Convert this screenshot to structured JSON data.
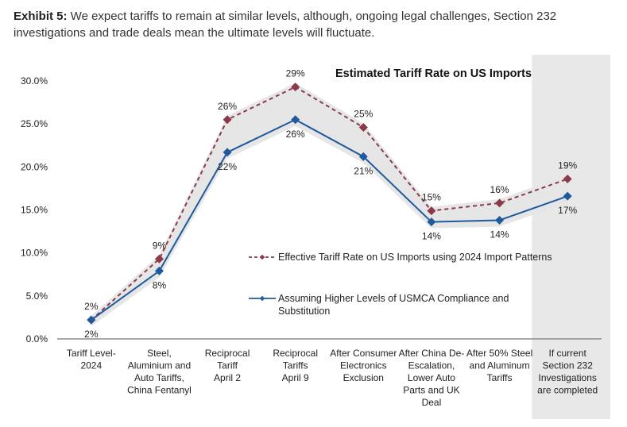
{
  "caption": {
    "prefix": "Exhibit 5:",
    "text": " We expect tariffs to remain at similar levels, although, ongoing legal challenges, Section 232 investigations and trade deals mean the ultimate levels will fluctuate."
  },
  "chart_data": {
    "type": "line",
    "title": "Estimated Tariff Rate on US Imports",
    "xlabel": "",
    "ylabel": "",
    "ylim": [
      0,
      30
    ],
    "yticks": [
      "0.0%",
      "5.0%",
      "10.0%",
      "15.0%",
      "20.0%",
      "25.0%",
      "30.0%"
    ],
    "ytick_values": [
      0,
      5,
      10,
      15,
      20,
      25,
      30
    ],
    "grid": false,
    "legend_position": "center-right",
    "categories": [
      [
        "Tariff Level-",
        "2024"
      ],
      [
        "Steel,",
        "Aluminium and",
        "Auto Tariffs,",
        "China Fentanyl"
      ],
      [
        "Reciprocal",
        "Tariff",
        "April 2"
      ],
      [
        "Reciprocal",
        "Tariffs",
        "April 9"
      ],
      [
        "After Consumer",
        "Electronics",
        "Exclusion"
      ],
      [
        "After China De-",
        "Escalation,",
        "Lower Auto",
        "Parts and UK",
        "Deal"
      ],
      [
        "After 50% Steel",
        "and Aluminum",
        "Tariffs"
      ],
      [
        "If current",
        "Section 232",
        "Investigations",
        "are completed"
      ]
    ],
    "highlighted_category_index": 7,
    "highlight_color": "#e8e8e8",
    "band_color": "#e6e6e6",
    "series": [
      {
        "name": "Effective Tariff Rate on US Imports using 2024 Import Patterns",
        "color": "#8b3a4a",
        "style": "dashed",
        "values": [
          2.2,
          9.3,
          25.5,
          29.3,
          24.6,
          14.9,
          15.8,
          18.6
        ],
        "labels": [
          "2%",
          "9%",
          "26%",
          "29%",
          "25%",
          "15%",
          "16%",
          "19%"
        ],
        "label_position": "above"
      },
      {
        "name": "Assuming Higher Levels of USMCA Compliance and Substitution",
        "legend_lines": [
          "Assuming Higher Levels of USMCA Compliance and",
          "Substitution"
        ],
        "color": "#1f5a9c",
        "style": "solid",
        "values": [
          2.2,
          7.9,
          21.7,
          25.5,
          21.2,
          13.6,
          13.8,
          16.6
        ],
        "labels": [
          "2%",
          "8%",
          "22%",
          "26%",
          "21%",
          "14%",
          "14%",
          "17%"
        ],
        "label_position": "below"
      }
    ]
  }
}
